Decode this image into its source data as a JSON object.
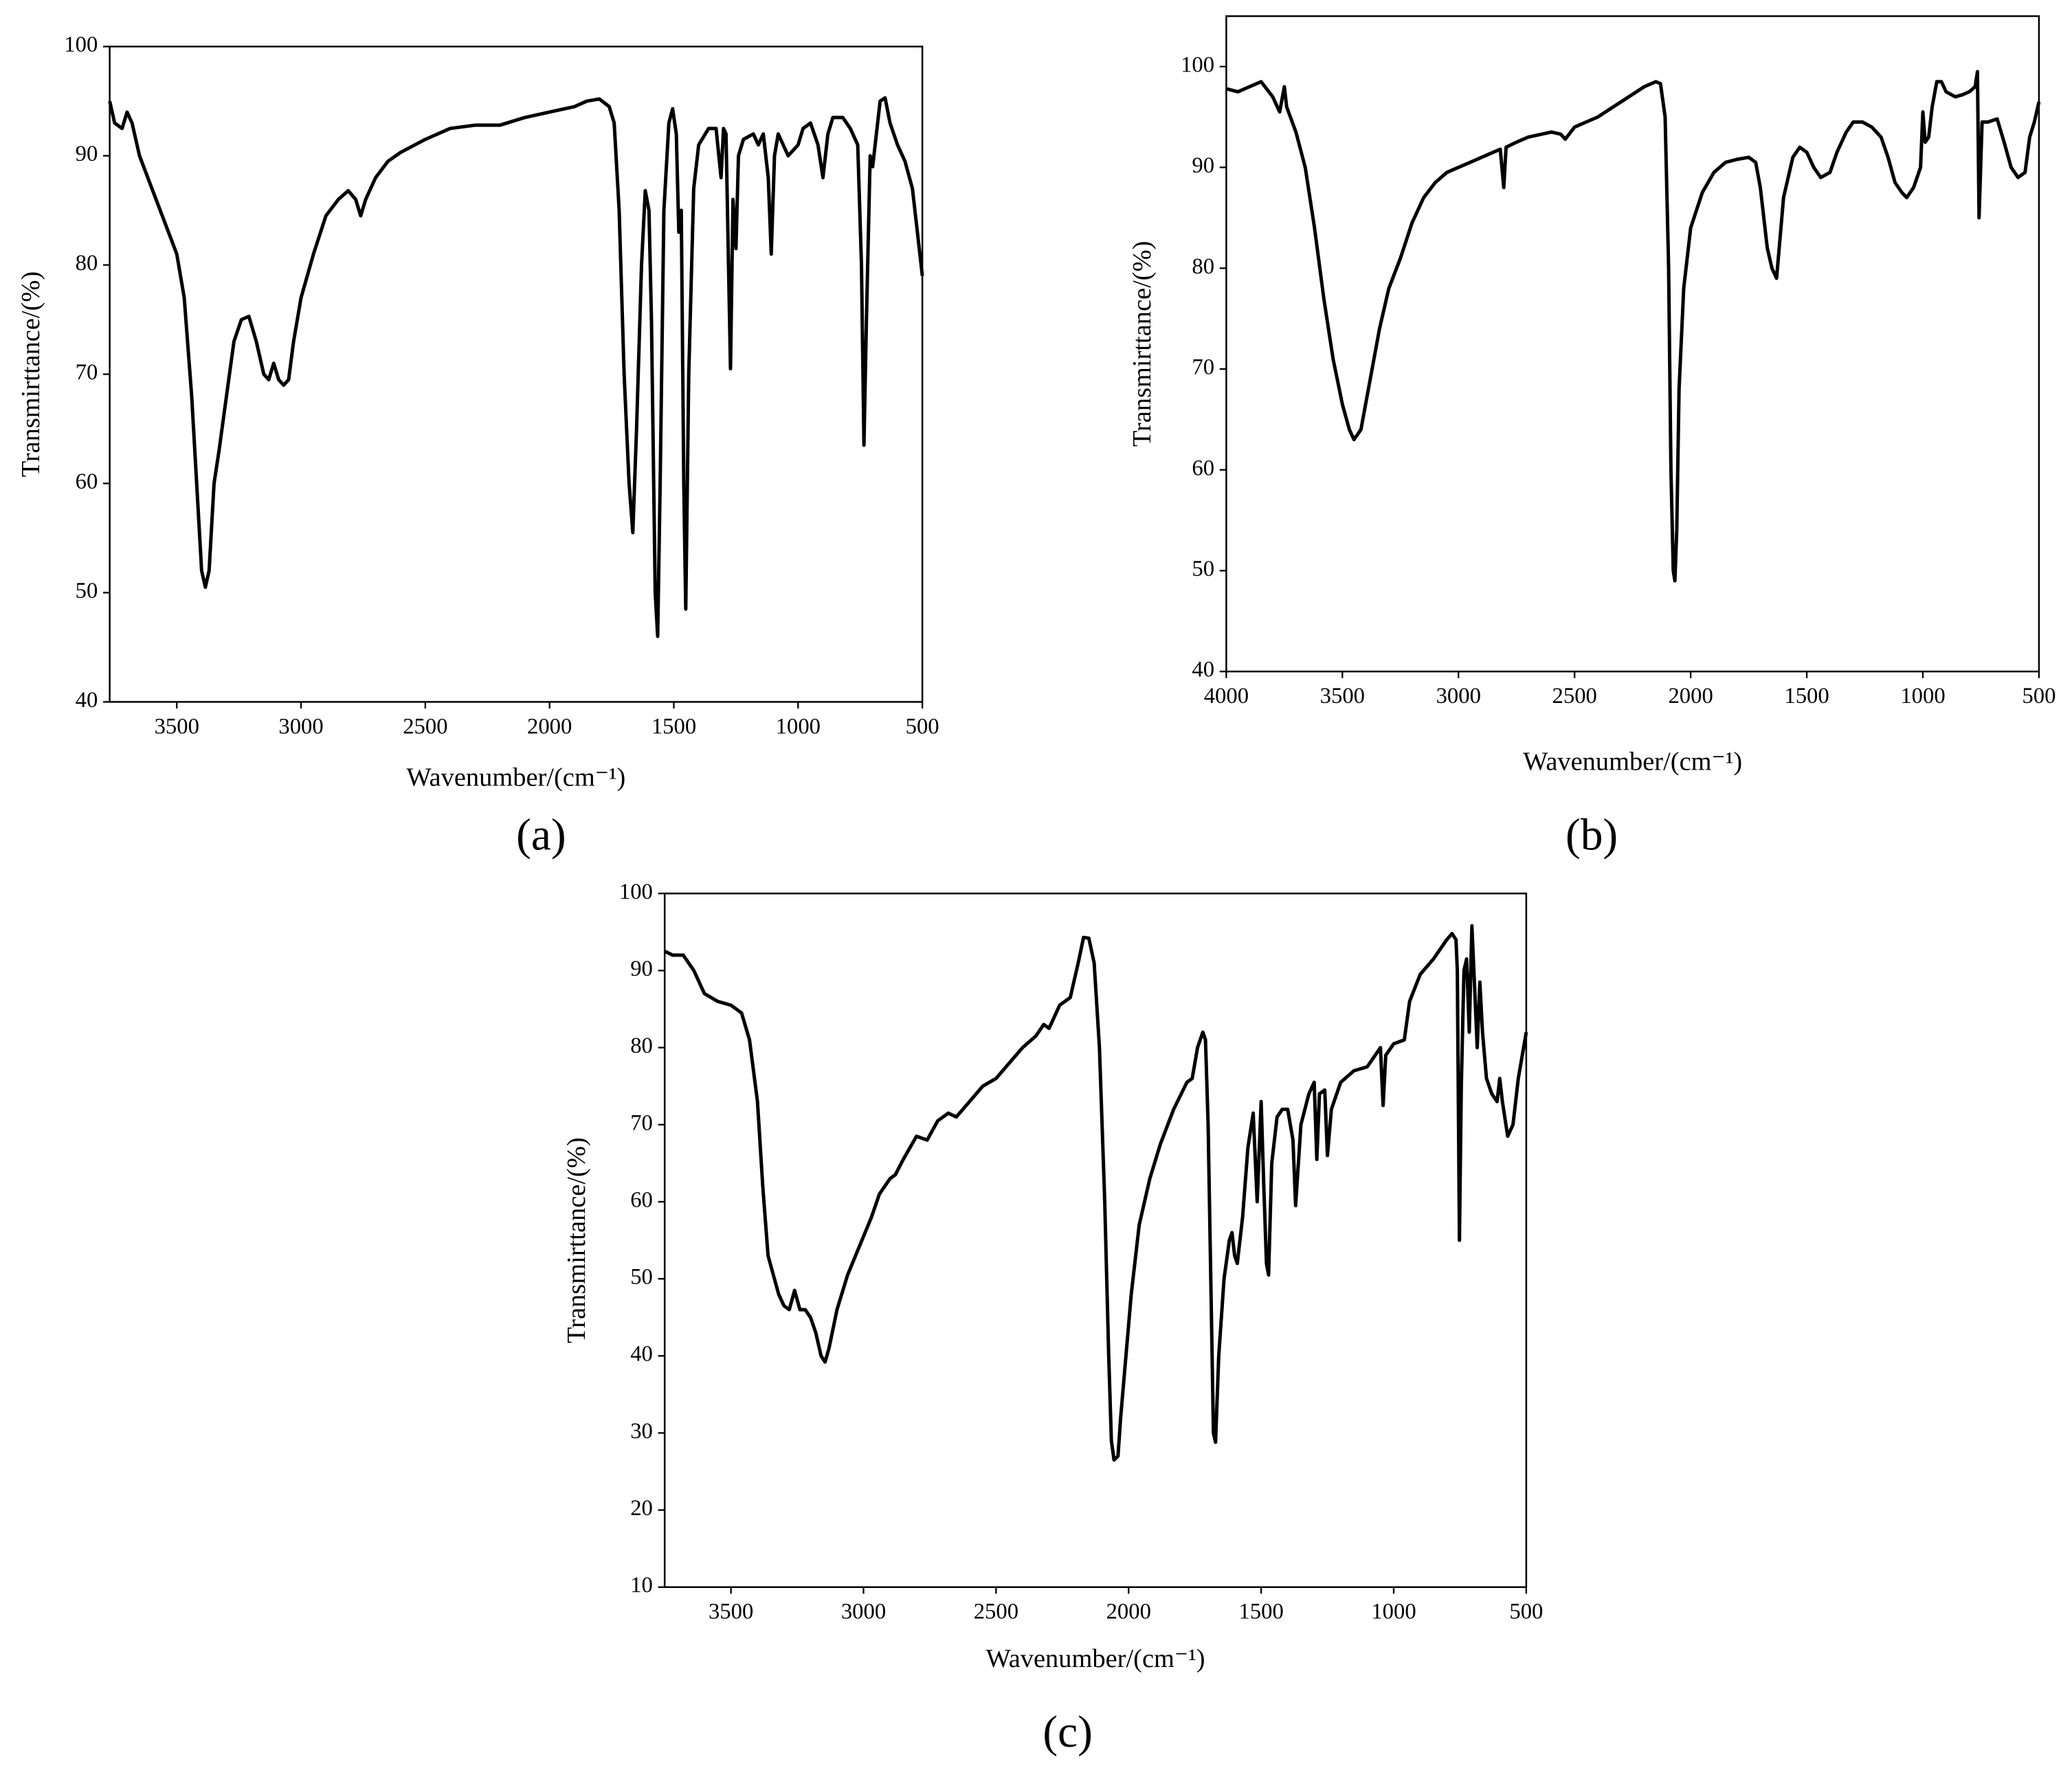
{
  "chart_data": [
    {
      "type": "line",
      "panel_label": "(a)",
      "xlabel": "Wavenumber/(cm⁻¹)",
      "ylabel": "Transmirttance/(%)",
      "color": "#000000",
      "xlim": [
        3770,
        500
      ],
      "ylim": [
        40,
        100
      ],
      "xticks": [
        3500,
        3000,
        2500,
        2000,
        1500,
        1000,
        500
      ],
      "yticks": [
        40,
        50,
        60,
        70,
        80,
        90,
        100
      ],
      "x": [
        3770,
        3750,
        3720,
        3700,
        3680,
        3650,
        3600,
        3550,
        3500,
        3470,
        3440,
        3420,
        3400,
        3385,
        3370,
        3350,
        3330,
        3300,
        3270,
        3240,
        3210,
        3180,
        3150,
        3130,
        3110,
        3090,
        3070,
        3050,
        3030,
        3000,
        2950,
        2900,
        2850,
        2810,
        2780,
        2760,
        2740,
        2700,
        2650,
        2600,
        2500,
        2400,
        2300,
        2200,
        2100,
        2000,
        1900,
        1850,
        1800,
        1760,
        1740,
        1720,
        1700,
        1680,
        1665,
        1650,
        1630,
        1615,
        1600,
        1590,
        1575,
        1565,
        1555,
        1540,
        1520,
        1505,
        1490,
        1480,
        1470,
        1460,
        1452,
        1440,
        1420,
        1400,
        1360,
        1330,
        1310,
        1300,
        1290,
        1280,
        1272,
        1262,
        1250,
        1240,
        1220,
        1180,
        1160,
        1140,
        1120,
        1108,
        1095,
        1080,
        1040,
        1000,
        980,
        950,
        920,
        900,
        880,
        860,
        820,
        790,
        760,
        745,
        735,
        725,
        710,
        700,
        690,
        670,
        650,
        630,
        600,
        570,
        540,
        520,
        500
      ],
      "values": [
        95,
        93,
        92.5,
        94,
        93,
        90,
        87,
        84,
        81,
        77,
        68,
        60,
        52,
        50.5,
        52,
        60,
        63,
        68,
        73,
        75,
        75.3,
        73,
        70,
        69.5,
        71,
        69.5,
        69,
        69.5,
        73,
        77,
        81,
        84.5,
        86,
        86.8,
        86,
        84.5,
        86,
        88,
        89.5,
        90.3,
        91.5,
        92.5,
        92.8,
        92.8,
        93.5,
        94,
        94.5,
        95,
        95.2,
        94.5,
        93,
        85,
        70,
        60,
        55.5,
        65,
        80,
        86.8,
        85,
        75,
        50,
        46,
        60,
        85,
        93,
        94.3,
        92,
        83,
        85,
        60,
        48.5,
        70,
        87,
        91,
        92.5,
        92.5,
        88,
        92.5,
        92,
        80,
        70.5,
        86,
        81.5,
        90,
        91.5,
        92,
        91,
        92,
        88,
        81,
        90,
        92,
        90,
        91,
        92.5,
        93,
        91,
        88,
        92,
        93.5,
        93.5,
        92.5,
        91,
        80,
        63.5,
        75,
        90,
        89,
        91,
        95,
        95.3,
        93,
        91,
        89.5,
        87,
        83,
        79
      ]
    },
    {
      "type": "line",
      "panel_label": "(b)",
      "xlabel": "Wavenumber/(cm⁻¹)",
      "ylabel": "Transmirttance/(%)",
      "color": "#000000",
      "xlim": [
        4000,
        500
      ],
      "ylim": [
        40,
        105
      ],
      "xticks": [
        4000,
        3500,
        3000,
        2500,
        2000,
        1500,
        1000,
        500
      ],
      "yticks": [
        40,
        50,
        60,
        70,
        80,
        90,
        100
      ],
      "x": [
        4000,
        3950,
        3900,
        3850,
        3800,
        3770,
        3750,
        3740,
        3700,
        3660,
        3620,
        3580,
        3540,
        3500,
        3470,
        3450,
        3420,
        3380,
        3340,
        3300,
        3250,
        3200,
        3150,
        3100,
        3050,
        3000,
        2950,
        2900,
        2850,
        2820,
        2805,
        2795,
        2750,
        2700,
        2600,
        2560,
        2540,
        2500,
        2400,
        2300,
        2200,
        2150,
        2130,
        2110,
        2095,
        2085,
        2075,
        2068,
        2060,
        2050,
        2030,
        2000,
        1950,
        1900,
        1850,
        1800,
        1750,
        1720,
        1700,
        1670,
        1650,
        1630,
        1615,
        1600,
        1560,
        1530,
        1500,
        1470,
        1440,
        1400,
        1370,
        1330,
        1300,
        1260,
        1220,
        1180,
        1150,
        1120,
        1090,
        1070,
        1040,
        1010,
        1000,
        990,
        975,
        960,
        940,
        920,
        900,
        860,
        830,
        800,
        775,
        765,
        758,
        745,
        720,
        680,
        650,
        620,
        590,
        560,
        540,
        520,
        500
      ],
      "values": [
        97.8,
        97.5,
        98,
        98.5,
        97,
        95.5,
        98,
        96,
        93.5,
        90,
        84,
        77,
        71,
        66.5,
        64,
        63,
        64,
        69,
        74,
        78,
        81,
        84.5,
        87,
        88.5,
        89.5,
        90,
        90.5,
        91,
        91.5,
        91.8,
        88,
        92,
        92.5,
        93,
        93.5,
        93.3,
        92.8,
        94,
        95,
        96.5,
        98,
        98.5,
        98.3,
        95,
        80,
        60,
        50,
        49,
        54,
        68,
        78,
        84,
        87.5,
        89.5,
        90.5,
        90.8,
        91,
        90.5,
        88,
        82,
        80,
        79,
        83,
        87,
        91,
        92,
        91.5,
        90,
        89,
        89.5,
        91.5,
        93.5,
        94.5,
        94.5,
        94,
        93,
        91,
        88.5,
        87.5,
        87,
        88,
        90,
        95.5,
        92.5,
        93,
        96,
        98.5,
        98.5,
        97.5,
        97,
        97.2,
        97.5,
        98,
        99.5,
        85,
        94.5,
        94.5,
        94.8,
        92.5,
        90,
        89,
        89.5,
        93,
        94.5,
        96.5
      ]
    },
    {
      "type": "line",
      "panel_label": "(c)",
      "xlabel": "Wavenumber/(cm⁻¹)",
      "ylabel": "Transmirttance/(%)",
      "color": "#000000",
      "xlim": [
        3750,
        500
      ],
      "ylim": [
        10,
        100
      ],
      "xticks": [
        3500,
        3000,
        2500,
        2000,
        1500,
        1000,
        500
      ],
      "yticks": [
        10,
        20,
        30,
        40,
        50,
        60,
        70,
        80,
        90,
        100
      ],
      "x": [
        3750,
        3720,
        3680,
        3640,
        3600,
        3550,
        3500,
        3460,
        3430,
        3400,
        3380,
        3360,
        3340,
        3320,
        3300,
        3280,
        3260,
        3240,
        3220,
        3200,
        3180,
        3160,
        3145,
        3130,
        3100,
        3060,
        3030,
        3000,
        2970,
        2940,
        2900,
        2880,
        2850,
        2800,
        2760,
        2720,
        2680,
        2650,
        2600,
        2550,
        2500,
        2450,
        2400,
        2350,
        2320,
        2300,
        2260,
        2220,
        2190,
        2170,
        2150,
        2130,
        2110,
        2090,
        2075,
        2065,
        2055,
        2040,
        2030,
        2010,
        1990,
        1960,
        1920,
        1880,
        1830,
        1780,
        1760,
        1740,
        1720,
        1710,
        1700,
        1690,
        1680,
        1672,
        1660,
        1640,
        1620,
        1610,
        1600,
        1590,
        1570,
        1550,
        1530,
        1515,
        1500,
        1490,
        1480,
        1472,
        1460,
        1440,
        1420,
        1400,
        1380,
        1370,
        1350,
        1320,
        1300,
        1290,
        1280,
        1260,
        1250,
        1235,
        1200,
        1150,
        1100,
        1050,
        1040,
        1030,
        1000,
        960,
        940,
        900,
        850,
        800,
        780,
        765,
        760,
        752,
        745,
        735,
        725,
        715,
        705,
        695,
        685,
        675,
        665,
        650,
        630,
        610,
        600,
        590,
        570,
        550,
        530,
        515,
        500
      ],
      "values": [
        92.5,
        92,
        92,
        90,
        87,
        86,
        85.5,
        84.5,
        81,
        73,
        62,
        53,
        50.5,
        48,
        46.5,
        46,
        48.5,
        46,
        46,
        45,
        43,
        40,
        39.2,
        41,
        46,
        50.5,
        53,
        55.5,
        58,
        61,
        63,
        63.5,
        65.5,
        68.5,
        68,
        70.5,
        71.5,
        71,
        73,
        75,
        76,
        78,
        80,
        81.5,
        83,
        82.5,
        85.5,
        86.5,
        91,
        94.3,
        94.2,
        91,
        80,
        60,
        40,
        29,
        26.5,
        27,
        32,
        40,
        48,
        57,
        63,
        67.5,
        72,
        75.5,
        76,
        80,
        82,
        81,
        70,
        50,
        30,
        28.8,
        40,
        50,
        55,
        56,
        53,
        52,
        58,
        67,
        71.5,
        60,
        73,
        62,
        52,
        50.5,
        65,
        71,
        72,
        72,
        68,
        59.5,
        70,
        74,
        75.5,
        65.5,
        74,
        74.5,
        66,
        72,
        75.5,
        77,
        77.5,
        80,
        72.5,
        79,
        80.5,
        81,
        86,
        89.5,
        91.5,
        94,
        94.8,
        94,
        90,
        55,
        75,
        90,
        91.5,
        82,
        95.8,
        88,
        80,
        88.5,
        82,
        76,
        74,
        73,
        76,
        73,
        68.5,
        70,
        76,
        79,
        82
      ]
    }
  ]
}
